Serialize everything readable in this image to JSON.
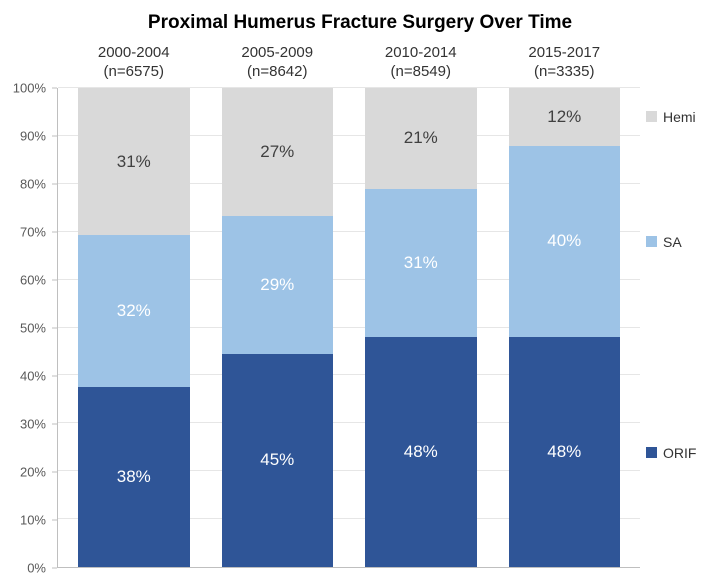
{
  "chart": {
    "type": "stacked-bar",
    "title": "Proximal Humerus Fracture Surgery Over Time",
    "title_fontsize": 19,
    "background_color": "#ffffff",
    "yaxis": {
      "min": 0,
      "max": 100,
      "step": 10,
      "suffix": "%",
      "label_fontsize": 13,
      "label_color": "#595959",
      "gridline_color": "#e6e6e6",
      "axis_line_color": "#bfbfbf"
    },
    "categories": [
      {
        "period": "2000-2004",
        "n_label": "(n=6575)"
      },
      {
        "period": "2005-2009",
        "n_label": "(n=8642)"
      },
      {
        "period": "2010-2014",
        "n_label": "(n=8549)"
      },
      {
        "period": "2015-2017",
        "n_label": "(n=3335)"
      }
    ],
    "series": [
      {
        "key": "orif",
        "label": "ORIF",
        "color": "#2f5597",
        "text_color": "#ffffff"
      },
      {
        "key": "sa",
        "label": "SA",
        "color": "#9dc3e6",
        "text_color": "#ffffff"
      },
      {
        "key": "hemi",
        "label": "Hemi",
        "color": "#d9d9d9",
        "text_color": "#404040"
      }
    ],
    "data": {
      "orif": [
        38,
        45,
        48,
        48
      ],
      "sa": [
        32,
        29,
        31,
        40
      ],
      "hemi": [
        31,
        27,
        21,
        12
      ]
    },
    "data_label_suffix": "%",
    "data_label_fontsize": 17,
    "category_label_fontsize": 15,
    "legend_fontsize": 14
  }
}
